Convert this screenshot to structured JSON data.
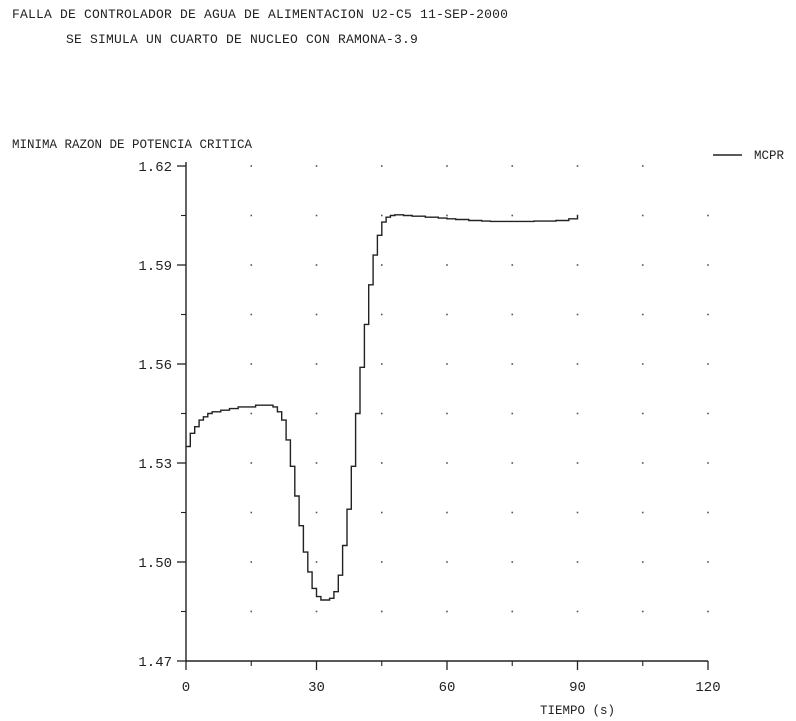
{
  "header": {
    "title": "FALLA DE CONTROLADOR DE AGUA DE ALIMENTACION U2-C5 11-SEP-2000",
    "subtitle": "SE SIMULA UN CUARTO DE NUCLEO CON RAMONA-3.9"
  },
  "chart_data": {
    "type": "line",
    "title": "FALLA DE CONTROLADOR DE AGUA DE ALIMENTACION U2-C5 11-SEP-2000",
    "subtitle": "SE SIMULA UN CUARTO DE NUCLEO CON RAMONA-3.9",
    "ylabel": "MINIMA RAZON DE POTENCIA CRITICA",
    "xlabel": "TIEMPO (s)",
    "xlim": [
      0,
      120
    ],
    "ylim": [
      1.47,
      1.62
    ],
    "xticks": [
      "0",
      "30",
      "60",
      "90",
      "120"
    ],
    "yticks": [
      "1.47",
      "1.50",
      "1.53",
      "1.56",
      "1.59",
      "1.62"
    ],
    "grid": "dots",
    "legend": "top-right",
    "series": [
      {
        "name": "MCPR",
        "color": "#222222",
        "step": true,
        "x": [
          0,
          1,
          2,
          3,
          4,
          5,
          6,
          8,
          10,
          12,
          14,
          16,
          18,
          20,
          21,
          22,
          23,
          24,
          25,
          26,
          27,
          28,
          29,
          30,
          31,
          32,
          33,
          34,
          35,
          36,
          37,
          38,
          39,
          40,
          41,
          42,
          43,
          44,
          45,
          46,
          47,
          48,
          50,
          52,
          55,
          58,
          60,
          62,
          65,
          68,
          70,
          75,
          80,
          85,
          88,
          90
        ],
        "y": [
          1.535,
          1.539,
          1.541,
          1.543,
          1.544,
          1.545,
          1.5455,
          1.546,
          1.5465,
          1.547,
          1.547,
          1.5475,
          1.5475,
          1.547,
          1.5455,
          1.543,
          1.537,
          1.529,
          1.52,
          1.511,
          1.503,
          1.497,
          1.492,
          1.4895,
          1.4885,
          1.4885,
          1.489,
          1.491,
          1.496,
          1.505,
          1.516,
          1.529,
          1.545,
          1.559,
          1.572,
          1.584,
          1.593,
          1.599,
          1.603,
          1.6045,
          1.605,
          1.6052,
          1.605,
          1.6048,
          1.6045,
          1.6042,
          1.604,
          1.6038,
          1.6035,
          1.6033,
          1.6032,
          1.6032,
          1.6033,
          1.6035,
          1.604,
          1.605
        ]
      }
    ]
  }
}
